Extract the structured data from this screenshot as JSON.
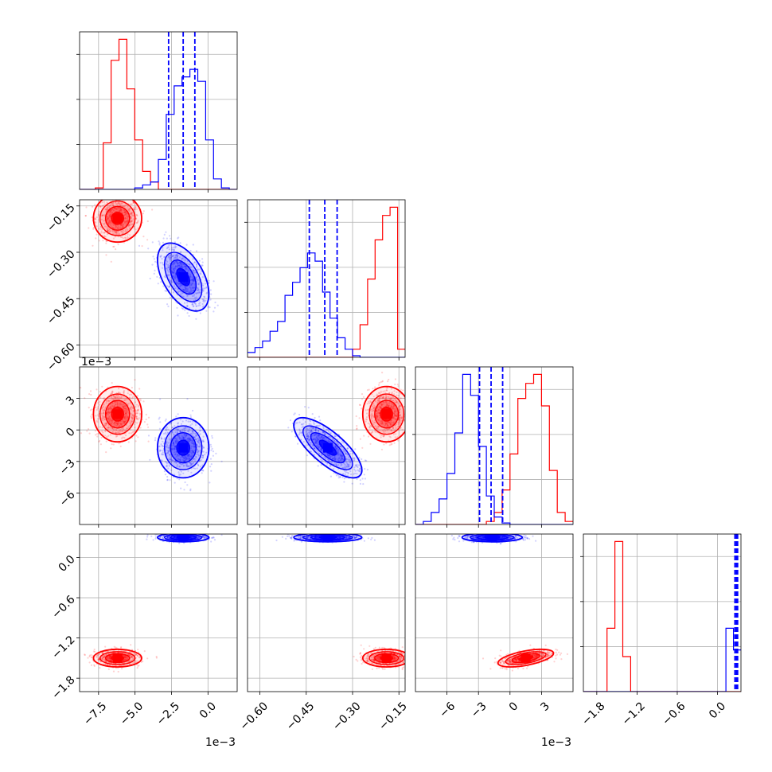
{
  "chart_data": {
    "type": "corner",
    "grid": true,
    "series": [
      {
        "color": "#ff0000",
        "mean": [
          -6.2,
          -0.19,
          1.5,
          -1.5
        ],
        "sd": [
          0.75,
          0.035,
          1.2,
          0.06
        ],
        "corr": {
          "0-1": 0.0,
          "0-2": 0.0,
          "1-2": 0.0,
          "0-3": 0.0,
          "1-3": 0.0,
          "2-3": 0.55
        }
      },
      {
        "color": "#0000ff",
        "mean": [
          -1.7,
          -0.38,
          -1.7,
          0.3
        ],
        "sd": [
          0.8,
          0.05,
          1.3,
          0.03
        ],
        "corr": {
          "0-1": -0.5,
          "0-2": 0.0,
          "1-2": -0.75,
          "0-3": 0.0,
          "1-3": 0.0,
          "2-3": 0.0
        }
      }
    ],
    "quantiles_blue": [
      [
        -2.7,
        -1.7,
        -0.9
      ],
      [
        -0.44,
        -0.39,
        -0.35
      ],
      [
        -2.9,
        -1.8,
        -0.7
      ],
      [
        0.26,
        0.28,
        0.3
      ]
    ],
    "hist1": {
      "x": [
        -8.8,
        2.0
      ],
      "red": [
        0,
        0,
        1,
        31,
        86,
        100,
        67,
        33,
        12,
        5,
        0,
        0,
        0,
        0,
        0,
        0,
        0,
        0,
        0,
        0
      ],
      "blue": [
        0,
        0,
        0,
        0,
        0,
        0,
        0,
        1,
        3,
        5,
        20,
        50,
        69,
        75,
        80,
        72,
        33,
        7,
        1,
        0
      ]
    },
    "hist2": {
      "x": [
        -0.64,
        -0.13
      ],
      "red": [
        0,
        0,
        0,
        0,
        0,
        0,
        0,
        0,
        0,
        0,
        0,
        0,
        0,
        0,
        5,
        20,
        48,
        72,
        87,
        92,
        5
      ],
      "blue": [
        3,
        6,
        10,
        16,
        22,
        38,
        46,
        55,
        64,
        59,
        40,
        24,
        12,
        5,
        1,
        0,
        0,
        0,
        0,
        0,
        0
      ]
    },
    "hist3": {
      "x": [
        -9.0,
        6.0
      ],
      "red": [
        0,
        0,
        0,
        0,
        0,
        0,
        0,
        0,
        0,
        2,
        8,
        23,
        47,
        84,
        94,
        100,
        79,
        36,
        8,
        2
      ],
      "blue": [
        0,
        2,
        8,
        17,
        34,
        61,
        100,
        86,
        52,
        19,
        5,
        1,
        0,
        0,
        0,
        0,
        0,
        0,
        0,
        0
      ]
    },
    "hist4": {
      "x": [
        -2.0,
        0.35
      ],
      "red": [
        0,
        0,
        0,
        38,
        90,
        21,
        0,
        0,
        0,
        0,
        0,
        0,
        0,
        0,
        0,
        0,
        0,
        0,
        0,
        0
      ],
      "blue": [
        0,
        0,
        0,
        0,
        0,
        0,
        0,
        0,
        0,
        0,
        0,
        0,
        0,
        0,
        0,
        0,
        0,
        0,
        0,
        38,
        25
      ]
    },
    "axes": [
      {
        "lim": [
          -8.8,
          2.0
        ],
        "ticks": [
          -7.5,
          -5.0,
          -2.5,
          0.0
        ],
        "labels": [
          "−7.5",
          "−5.0",
          "−2.5",
          "0.0"
        ],
        "offset": "1e−3"
      },
      {
        "lim": [
          -0.64,
          -0.13
        ],
        "ticks": [
          -0.6,
          -0.45,
          -0.3,
          -0.15
        ],
        "labels": [
          "−0.60",
          "−0.45",
          "−0.30",
          "−0.15"
        ],
        "offset": ""
      },
      {
        "lim": [
          -9.0,
          6.0
        ],
        "ticks": [
          -6,
          -3,
          0,
          3
        ],
        "labels": [
          "−6",
          "−3",
          "0",
          "3"
        ],
        "offset": "1e−3"
      },
      {
        "lim": [
          -2.0,
          0.35
        ],
        "ticks": [
          -1.8,
          -1.2,
          -0.6,
          0.0
        ],
        "labels": [
          "−1.8",
          "−1.2",
          "−0.6",
          "0.0"
        ],
        "offset": ""
      }
    ]
  }
}
